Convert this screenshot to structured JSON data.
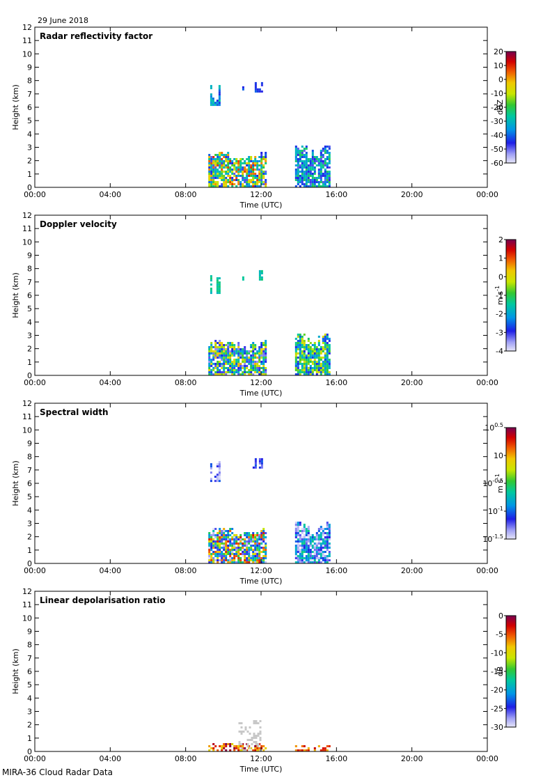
{
  "date_label": "29 June 2018",
  "footer_label": "MIRA-36 Cloud Radar Data",
  "chart_data": [
    {
      "type": "heatmap",
      "title": "Radar reflectivity factor",
      "xlabel": "Time (UTC)",
      "ylabel": "Height (km)",
      "xticks": [
        "00:00",
        "04:00",
        "08:00",
        "12:00",
        "16:00",
        "20:00",
        "00:00"
      ],
      "xlim_hours": [
        0,
        24
      ],
      "ylim": [
        0,
        12
      ],
      "yticks": [
        "0",
        "1",
        "2",
        "3",
        "4",
        "5",
        "6",
        "7",
        "8",
        "9",
        "10",
        "11",
        "12"
      ],
      "colorbar": {
        "label": "dBZ",
        "min": -60,
        "max": 20,
        "ticks": [
          "20",
          "10",
          "0",
          "-10",
          "-20",
          "-30",
          "-40",
          "-50",
          "-60"
        ]
      },
      "echo_regions": [
        {
          "t0": 9.2,
          "t1": 12.2,
          "h0": 0.0,
          "h1": 2.6,
          "value_range": [
            -50,
            10
          ]
        },
        {
          "t0": 13.8,
          "t1": 15.6,
          "h0": 0.0,
          "h1": 3.1,
          "value_range": [
            -50,
            -20
          ]
        },
        {
          "t0": 9.3,
          "t1": 9.8,
          "h0": 6.1,
          "h1": 7.6,
          "value_range": [
            -45,
            -25
          ]
        },
        {
          "t0": 11.0,
          "t1": 12.2,
          "h0": 7.1,
          "h1": 7.8,
          "value_range": [
            -50,
            -40
          ]
        }
      ]
    },
    {
      "type": "heatmap",
      "title": "Doppler velocity",
      "xlabel": "Time (UTC)",
      "ylabel": "Height (km)",
      "xticks": [
        "00:00",
        "04:00",
        "08:00",
        "12:00",
        "16:00",
        "20:00",
        "00:00"
      ],
      "xlim_hours": [
        0,
        24
      ],
      "ylim": [
        0,
        12
      ],
      "yticks": [
        "0",
        "1",
        "2",
        "3",
        "4",
        "5",
        "6",
        "7",
        "8",
        "9",
        "10",
        "11",
        "12"
      ],
      "colorbar": {
        "label": "m s",
        "label_sup": "-1",
        "min": -4,
        "max": 2,
        "ticks": [
          "2",
          "1",
          "0",
          "-1",
          "-2",
          "-3",
          "-4"
        ]
      },
      "echo_regions": [
        {
          "t0": 9.2,
          "t1": 12.2,
          "h0": 0.0,
          "h1": 2.6,
          "value_range": [
            -3.5,
            0.5
          ]
        },
        {
          "t0": 13.8,
          "t1": 15.6,
          "h0": 0.0,
          "h1": 3.1,
          "value_range": [
            -3,
            0
          ]
        },
        {
          "t0": 9.3,
          "t1": 9.8,
          "h0": 6.1,
          "h1": 7.6,
          "value_range": [
            -1.8,
            -1.2
          ]
        },
        {
          "t0": 11.0,
          "t1": 12.2,
          "h0": 7.1,
          "h1": 7.8,
          "value_range": [
            -1.8,
            -1.2
          ]
        }
      ]
    },
    {
      "type": "heatmap",
      "title": "Spectral width",
      "xlabel": "Time (UTC)",
      "ylabel": "Height (km)",
      "xticks": [
        "00:00",
        "04:00",
        "08:00",
        "12:00",
        "16:00",
        "20:00",
        "00:00"
      ],
      "xlim_hours": [
        0,
        24
      ],
      "ylim": [
        0,
        12
      ],
      "yticks": [
        "0",
        "1",
        "2",
        "3",
        "4",
        "5",
        "6",
        "7",
        "8",
        "9",
        "10",
        "11",
        "12"
      ],
      "colorbar": {
        "label": "m s",
        "label_sup": "-1",
        "min_log10": -1.5,
        "max_log10": 0.5,
        "tick_base": "10",
        "tick_exps": [
          "0.5",
          "",
          "-0.5",
          "-1",
          "-1.5"
        ]
      },
      "echo_regions": [
        {
          "t0": 9.2,
          "t1": 12.2,
          "h0": 0.0,
          "h1": 2.6,
          "value_range": [
            -1.5,
            0.3
          ]
        },
        {
          "t0": 13.8,
          "t1": 15.6,
          "h0": 0.0,
          "h1": 3.1,
          "value_range": [
            -1.5,
            -0.6
          ]
        },
        {
          "t0": 9.3,
          "t1": 9.8,
          "h0": 6.1,
          "h1": 7.6,
          "value_range": [
            -1.5,
            -1.0
          ]
        },
        {
          "t0": 11.0,
          "t1": 12.2,
          "h0": 7.1,
          "h1": 7.8,
          "value_range": [
            -1.3,
            -1.0
          ]
        }
      ]
    },
    {
      "type": "heatmap",
      "title": "Linear depolarisation ratio",
      "xlabel": "Time (UTC)",
      "ylabel": "Height (km)",
      "xticks": [
        "00:00",
        "04:00",
        "08:00",
        "12:00",
        "16:00",
        "20:00",
        "00:00"
      ],
      "xlim_hours": [
        0,
        24
      ],
      "ylim": [
        0,
        12
      ],
      "yticks": [
        "0",
        "1",
        "2",
        "3",
        "4",
        "5",
        "6",
        "7",
        "8",
        "9",
        "10",
        "11",
        "12"
      ],
      "colorbar": {
        "label": "dB",
        "min": -30,
        "max": 0,
        "ticks": [
          "0",
          "-5",
          "-10",
          "-15",
          "-20",
          "-25",
          "-30"
        ]
      },
      "echo_regions": [
        {
          "t0": 9.2,
          "t1": 12.2,
          "h0": 0.0,
          "h1": 0.6,
          "value_range": [
            -10,
            0
          ]
        },
        {
          "t0": 13.8,
          "t1": 15.6,
          "h0": 0.0,
          "h1": 0.4,
          "value_range": [
            -8,
            -2
          ]
        },
        {
          "t0": 10.8,
          "t1": 12.0,
          "h0": 0.0,
          "h1": 2.4,
          "value_range": [
            -30,
            -30
          ]
        }
      ]
    }
  ]
}
